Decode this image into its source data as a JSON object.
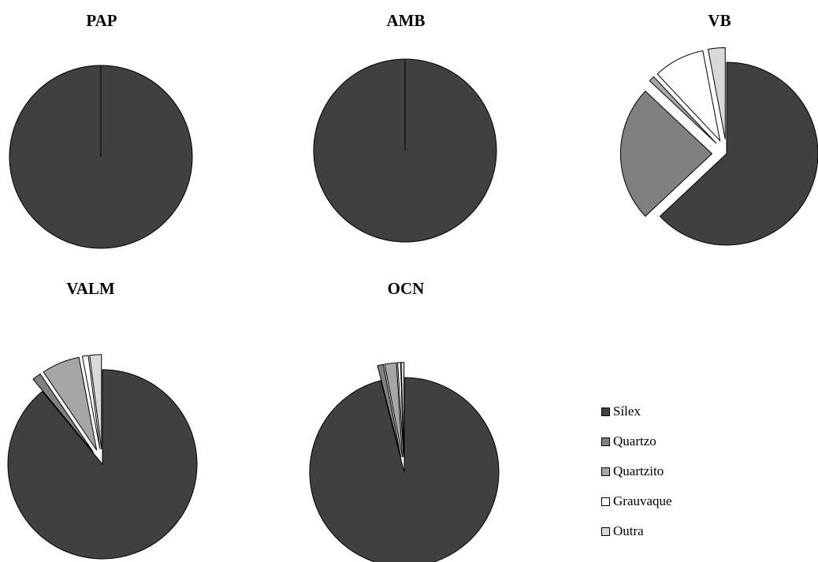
{
  "chart_data": {
    "type": "pie",
    "legend_position": "bottom-right",
    "legend": [
      {
        "name": "Sílex",
        "color": "#404040"
      },
      {
        "name": "Quartzo",
        "color": "#808080"
      },
      {
        "name": "Quartzito",
        "color": "#a6a6a6"
      },
      {
        "name": "Grauvaque",
        "color": "#ffffff"
      },
      {
        "name": "Outra",
        "color": "#d9d9d9"
      }
    ],
    "charts": [
      {
        "title": "PAP",
        "values": [
          100,
          0,
          0,
          0,
          0
        ]
      },
      {
        "title": "AMB",
        "values": [
          100,
          0,
          0,
          0,
          0
        ]
      },
      {
        "title": "VB",
        "values": [
          63,
          24,
          1,
          9,
          3
        ]
      },
      {
        "title": "VALM",
        "values": [
          89,
          1.5,
          6.5,
          1,
          2
        ]
      },
      {
        "title": "OCN",
        "values": [
          96,
          1,
          2,
          0.5,
          0.5
        ]
      }
    ]
  }
}
